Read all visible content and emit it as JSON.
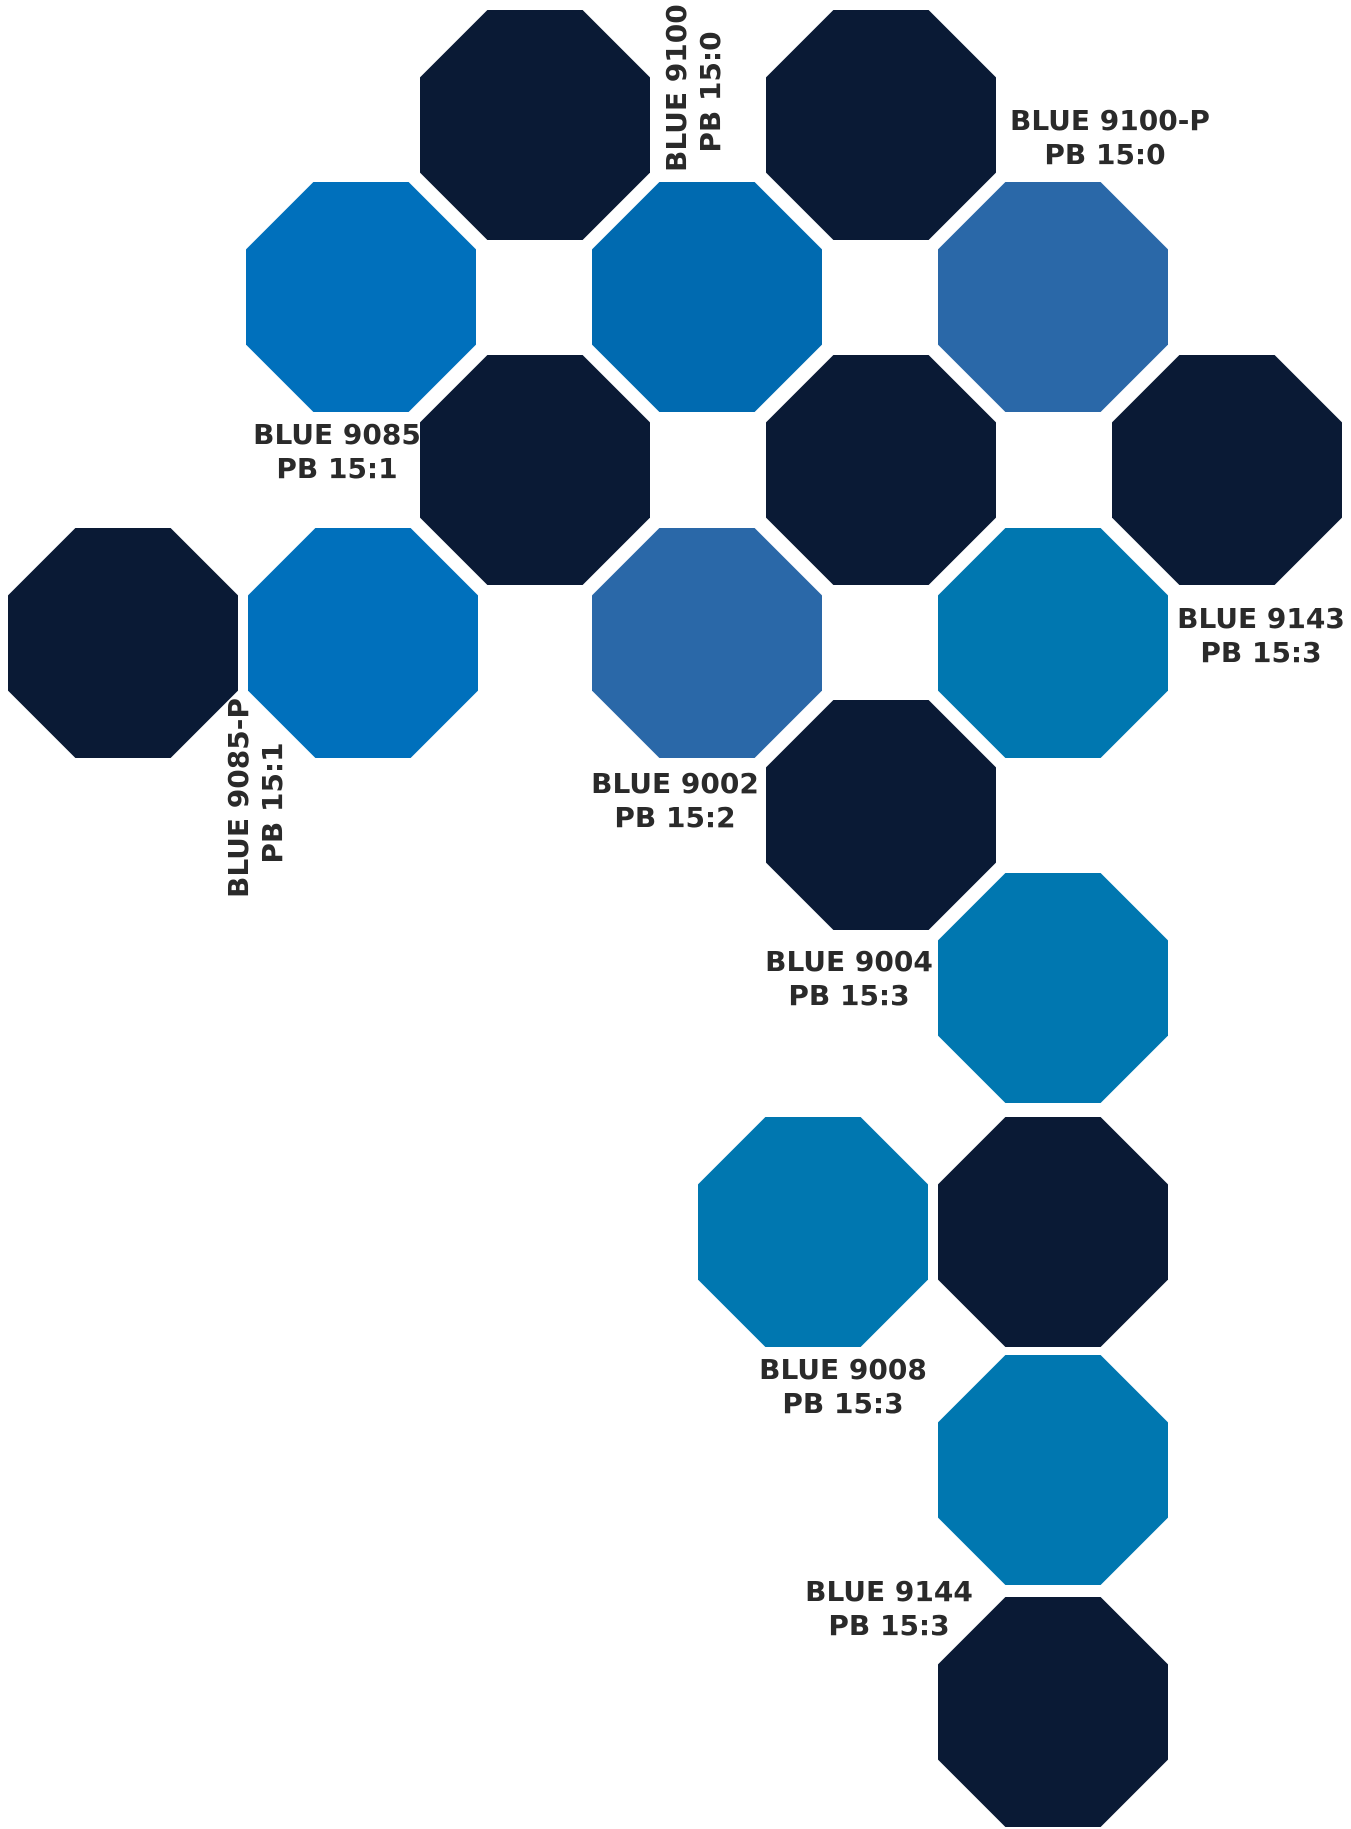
{
  "colors": {
    "navy": "#0a1a35",
    "blue_15_0": "#006ab0",
    "blue_15_1": "#0070bc",
    "blue_15_2": "#2a68a8",
    "blue_15_3": "#0077b0"
  },
  "labels": [
    {
      "id": "blue-9100",
      "name": "BLUE 9100",
      "pigment": "PB 15:0"
    },
    {
      "id": "blue-9100-p",
      "name": "BLUE 9100-P",
      "pigment": "PB 15:0"
    },
    {
      "id": "blue-9085",
      "name": "BLUE 9085",
      "pigment": "PB 15:1"
    },
    {
      "id": "blue-9085-p",
      "name": "BLUE 9085-P",
      "pigment": "PB 15:1"
    },
    {
      "id": "blue-9143",
      "name": "BLUE 9143",
      "pigment": "PB 15:3"
    },
    {
      "id": "blue-9002",
      "name": "BLUE 9002",
      "pigment": "PB 15:2"
    },
    {
      "id": "blue-9004",
      "name": "BLUE 9004",
      "pigment": "PB 15:3"
    },
    {
      "id": "blue-9008",
      "name": "BLUE 9008",
      "pigment": "PB 15:3"
    },
    {
      "id": "blue-9144",
      "name": "BLUE 9144",
      "pigment": "PB 15:3"
    }
  ]
}
